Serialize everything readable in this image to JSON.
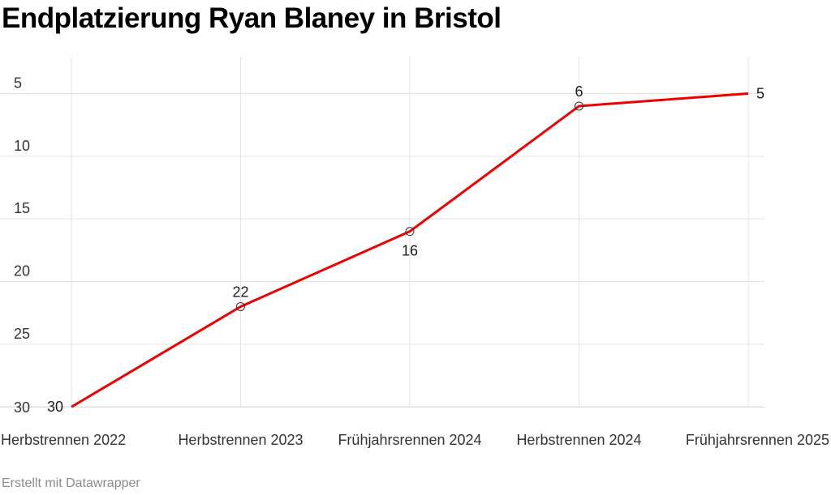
{
  "chart_data": {
    "type": "line",
    "title": "Endplatzierung Ryan Blaney in Bristol",
    "categories": [
      "Herbstrennen 2022",
      "Herbstrennen 2023",
      "Frühjahrsrennen 2024",
      "Herbstrennen 2024",
      "Frühjahrsrennen 2025"
    ],
    "series": [
      {
        "values": [
          30,
          22,
          16,
          6,
          5
        ],
        "color": "#ee0000"
      }
    ],
    "data_labels": [
      "30",
      "22",
      "16",
      "6",
      "5"
    ],
    "y_ticks": [
      5,
      10,
      15,
      20,
      25,
      30
    ],
    "ylim": [
      1,
      30
    ],
    "y_inverted": true,
    "grid": true,
    "marker": "open-circle"
  },
  "footer": {
    "credit": "Erstellt mit Datawrapper"
  }
}
